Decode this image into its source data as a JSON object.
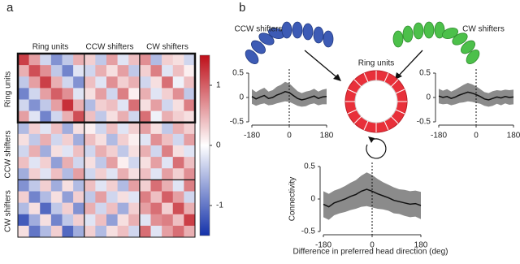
{
  "panel_a": {
    "label": "a",
    "column_labels": [
      "Ring units",
      "CCW shifters",
      "CW shifters"
    ],
    "row_labels": [
      "Ring units",
      "CCW shifters",
      "CW shifters"
    ],
    "matrix": [
      [
        1.2,
        0.6,
        -0.3,
        -0.8,
        -0.4,
        0.5,
        0.3,
        -0.4,
        0.6,
        -0.2,
        0.4,
        0.7,
        -0.5,
        0.3,
        0.2,
        -0.3
      ],
      [
        0.5,
        1.1,
        0.7,
        -0.4,
        -0.9,
        -0.2,
        -0.3,
        0.5,
        0.2,
        0.6,
        -0.4,
        0.3,
        0.8,
        -0.2,
        0.4,
        0.1
      ],
      [
        -0.4,
        0.6,
        1.2,
        0.5,
        -0.3,
        -0.8,
        0.4,
        -0.2,
        0.7,
        0.3,
        0.5,
        -0.3,
        0.2,
        0.9,
        -0.1,
        0.4
      ],
      [
        -0.9,
        -0.3,
        0.6,
        1.0,
        0.7,
        -0.2,
        0.2,
        0.6,
        -0.3,
        0.8,
        0.1,
        0.5,
        -0.2,
        0.3,
        0.7,
        -0.4
      ],
      [
        -0.3,
        -0.8,
        -0.4,
        0.6,
        1.3,
        0.5,
        -0.5,
        0.3,
        0.4,
        -0.2,
        0.9,
        0.2,
        0.6,
        -0.3,
        0.2,
        0.8
      ],
      [
        0.6,
        -0.2,
        -0.9,
        -0.3,
        0.5,
        1.1,
        0.4,
        -0.4,
        0.2,
        0.5,
        -0.3,
        0.9,
        -0.1,
        0.5,
        0.3,
        0.2
      ],
      [
        -0.5,
        0.3,
        -0.2,
        0.4,
        -0.6,
        0.2,
        0.1,
        -0.3,
        0.4,
        -0.2,
        0.3,
        0.6,
        0.2,
        -0.4,
        0.5,
        0.3
      ],
      [
        0.2,
        -0.4,
        0.5,
        -0.3,
        0.3,
        -0.6,
        0.4,
        0.2,
        -0.5,
        0.3,
        0.1,
        -0.2,
        0.7,
        0.4,
        -0.3,
        0.6
      ],
      [
        -0.3,
        0.5,
        -0.6,
        0.2,
        -0.2,
        0.4,
        -0.3,
        0.5,
        0.3,
        -0.4,
        0.2,
        0.5,
        -0.3,
        0.8,
        0.2,
        -0.2
      ],
      [
        0.4,
        -0.2,
        0.3,
        -0.7,
        0.5,
        -0.3,
        0.2,
        -0.4,
        0.6,
        0.1,
        -0.3,
        0.2,
        0.6,
        -0.2,
        0.9,
        0.4
      ],
      [
        -0.6,
        0.3,
        -0.2,
        0.4,
        -0.5,
        0.6,
        -0.3,
        0.3,
        -0.2,
        0.5,
        0.2,
        0.4,
        -0.2,
        0.6,
        0.3,
        0.7
      ],
      [
        -0.8,
        -0.4,
        0.3,
        -0.6,
        0.2,
        -0.5,
        0.4,
        -0.2,
        0.3,
        -0.5,
        0.6,
        0.3,
        0.9,
        0.5,
        -0.2,
        0.8
      ],
      [
        0.3,
        -0.9,
        -0.5,
        0.2,
        -0.7,
        0.3,
        -0.4,
        0.6,
        -0.3,
        0.2,
        -0.2,
        0.8,
        0.4,
        1.0,
        0.6,
        -0.3
      ],
      [
        -0.5,
        0.2,
        -1.1,
        -0.4,
        0.3,
        -0.8,
        0.5,
        -0.3,
        0.4,
        -0.6,
        0.3,
        0.6,
        0.9,
        0.3,
        1.1,
        0.5
      ],
      [
        -1.2,
        -0.6,
        0.2,
        -0.9,
        -0.4,
        0.3,
        -0.2,
        0.4,
        -0.7,
        0.2,
        0.5,
        -0.2,
        0.7,
        0.8,
        0.4,
        1.2
      ],
      [
        0.2,
        -1.0,
        -0.5,
        0.3,
        -1.1,
        -0.6,
        0.3,
        -0.5,
        0.2,
        0.4,
        -0.3,
        0.9,
        -0.2,
        0.6,
        0.9,
        0.5
      ]
    ],
    "clim": [
      -1.5,
      1.5
    ],
    "colorbar_ticks": [
      1,
      0,
      -1
    ]
  },
  "panel_b": {
    "label": "b",
    "left_group": "CCW shifters",
    "right_group": "CW shifters",
    "center": "Ring units",
    "y_label": "Connectivity",
    "x_label": "Difference in preferred head direction (deg)",
    "plots": [
      {
        "x": [
          -180,
          -160,
          -140,
          -120,
          -100,
          -80,
          -60,
          -40,
          -20,
          0,
          20,
          40,
          60,
          80,
          100,
          120,
          140,
          160,
          180
        ],
        "values": [
          0.02,
          -0.03,
          0.01,
          0.04,
          -0.02,
          0.0,
          0.05,
          0.08,
          0.12,
          0.1,
          0.04,
          -0.02,
          -0.05,
          -0.03,
          0.0,
          0.03,
          -0.02,
          0.01,
          0.02
        ],
        "errors": [
          0.15,
          0.14,
          0.15,
          0.16,
          0.14,
          0.15,
          0.17,
          0.18,
          0.2,
          0.19,
          0.17,
          0.15,
          0.14,
          0.15,
          0.14,
          0.15,
          0.14,
          0.15,
          0.16
        ],
        "xlim": [
          -180,
          180
        ],
        "ylim": [
          -0.5,
          0.5
        ],
        "xticks": [
          -180,
          0,
          180
        ],
        "yticks": [
          0.5,
          0,
          -0.5
        ]
      },
      {
        "x": [
          -180,
          -160,
          -140,
          -120,
          -100,
          -80,
          -60,
          -40,
          -20,
          0,
          20,
          40,
          60,
          80,
          100,
          120,
          140,
          160,
          180
        ],
        "values": [
          0.03,
          0.0,
          0.02,
          -0.02,
          0.01,
          0.05,
          0.08,
          0.11,
          0.09,
          0.06,
          0.02,
          -0.03,
          -0.05,
          -0.02,
          0.01,
          -0.01,
          0.02,
          0.0,
          0.01
        ],
        "errors": [
          0.15,
          0.14,
          0.15,
          0.14,
          0.15,
          0.16,
          0.18,
          0.19,
          0.18,
          0.17,
          0.15,
          0.14,
          0.14,
          0.15,
          0.14,
          0.15,
          0.14,
          0.15,
          0.15
        ],
        "xlim": [
          -180,
          180
        ],
        "ylim": [
          -0.5,
          0.5
        ],
        "xticks": [
          -180,
          0,
          180
        ],
        "yticks": [
          0.5,
          0,
          -0.5
        ]
      },
      {
        "x": [
          -180,
          -160,
          -140,
          -120,
          -100,
          -80,
          -60,
          -40,
          -20,
          0,
          20,
          40,
          60,
          80,
          100,
          120,
          140,
          160,
          180
        ],
        "values": [
          -0.08,
          -0.12,
          -0.06,
          -0.03,
          0.0,
          0.04,
          0.07,
          0.12,
          0.15,
          0.12,
          0.08,
          0.05,
          0.02,
          -0.02,
          -0.04,
          -0.06,
          -0.08,
          -0.07,
          -0.1
        ],
        "errors": [
          0.2,
          0.2,
          0.19,
          0.19,
          0.2,
          0.21,
          0.22,
          0.24,
          0.26,
          0.25,
          0.23,
          0.21,
          0.2,
          0.2,
          0.19,
          0.2,
          0.2,
          0.2,
          0.21
        ],
        "xlim": [
          -180,
          180
        ],
        "ylim": [
          -0.5,
          0.5
        ],
        "xticks": [
          -180,
          0,
          180
        ],
        "yticks": [
          0.5,
          0,
          -0.5
        ]
      }
    ]
  }
}
